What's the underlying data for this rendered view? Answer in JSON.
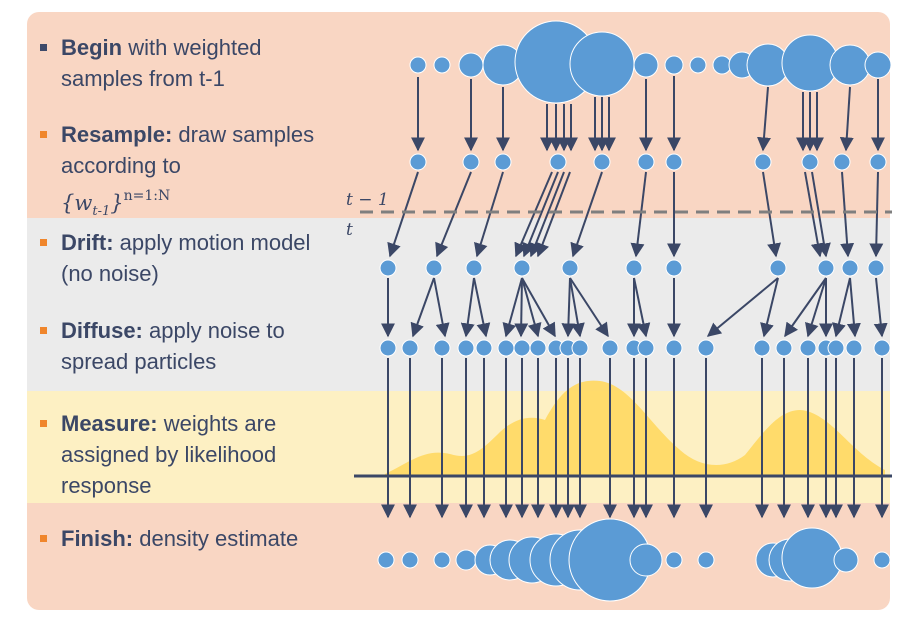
{
  "steps": [
    {
      "bold": "Begin",
      "rest": " with weighted samples from t-1"
    },
    {
      "bold": "Resample:",
      "rest": " draw samples according to",
      "math_var": "w",
      "math_sub": "t-1",
      "math_sup": "n=1:N"
    },
    {
      "bold": "Drift:",
      "rest": " apply motion model (no noise)"
    },
    {
      "bold": "Diffuse:",
      "rest": " apply noise to spread particles"
    },
    {
      "bold": "Measure:",
      "rest": " weights are assigned by likelihood response"
    },
    {
      "bold": "Finish:",
      "rest": " density estimate"
    }
  ],
  "time_labels": {
    "before": "t − 1",
    "after": "t"
  },
  "colors": {
    "particle": "#5b9bd5",
    "arrow": "#3b4766",
    "likelihood": "#ffd966",
    "bullet_first": "#3e4a6a",
    "bullet_rest": "#f0862c"
  }
}
